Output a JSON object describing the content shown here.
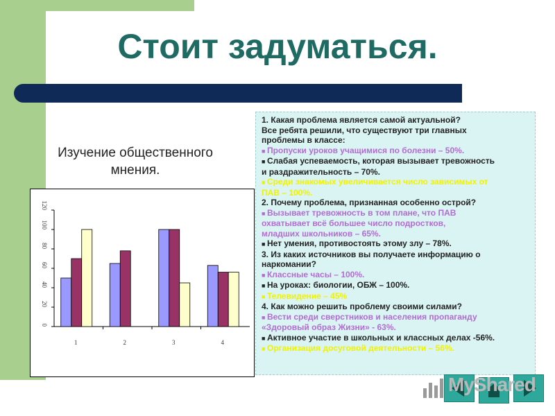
{
  "slide": {
    "title": "Стоит задуматься.",
    "subtitle_line1": "Изучение общественного",
    "subtitle_line2": "мнения."
  },
  "panel": {
    "lines": [
      {
        "text": "1. Какая  проблема является самой актуальной?",
        "style": "q"
      },
      {
        "text": "Все ребята решили, что существуют три главных",
        "style": "q"
      },
      {
        "text": "проблемы в классе:",
        "style": "q"
      },
      {
        "text": "Пропуски уроков учащимися по болезни – 50%.",
        "style": "c-pink",
        "bullet": true
      },
      {
        "text": "Слабая успеваемость, которая вызывает тревожность",
        "style": "c-dark",
        "bullet": true
      },
      {
        "text": "и раздражительность – 70%.",
        "style": "c-dark"
      },
      {
        "text": "Среди знакомых увеличивается число зависимых от",
        "style": "c-yellow",
        "bullet": true
      },
      {
        "text": "ПАВ – 100%.",
        "style": "c-yellow"
      },
      {
        "text": "2. Почему проблема, признанная особенно острой?",
        "style": "q"
      },
      {
        "text": "Вызывает тревожность в том плане, что ПАВ",
        "style": "c-pink",
        "bullet": true
      },
      {
        "text": "охватывает всё большее число подростков,",
        "style": "c-pink"
      },
      {
        "text": "младших школьников – 65%.",
        "style": "c-pink"
      },
      {
        "text": "Нет умения, противостоять этому злу – 78%.",
        "style": "c-dark",
        "bullet": true
      },
      {
        "text": "3. Из каких источников вы получаете информацию о",
        "style": "q"
      },
      {
        "text": "наркомании?",
        "style": "q"
      },
      {
        "text": "Классные часы – 100%.",
        "style": "c-pink",
        "bullet": true
      },
      {
        "text": "На уроках: биологии, ОБЖ – 100%.",
        "style": "c-dark",
        "bullet": true
      },
      {
        "text": "Телевидение – 45%",
        "style": "c-yellow",
        "bullet": true
      },
      {
        "text": "4. Как можно решить проблему своими силами?",
        "style": "q"
      },
      {
        "text": "Вести среди сверстников и населения пропаганду",
        "style": "c-pink",
        "bullet": true
      },
      {
        "text": "«Здоровый образ Жизни» - 63%.",
        "style": "c-pink"
      },
      {
        "text": "Активное участие в школьных и классных делах -56%.",
        "style": "c-dark",
        "bullet": true
      },
      {
        "text": "Организация досуговой деятельности – 56%.",
        "style": "c-yellow",
        "bullet": true
      }
    ]
  },
  "logo": {
    "text": "MyShared"
  },
  "chart_data": {
    "type": "bar",
    "categories": [
      "1",
      "2",
      "3",
      "4"
    ],
    "series": [
      {
        "values": [
          50,
          65,
          100,
          63
        ],
        "color": "#9999ff"
      },
      {
        "values": [
          70,
          78,
          100,
          56
        ],
        "color": "#993366"
      },
      {
        "values": [
          100,
          null,
          45,
          56
        ],
        "color": "#ffffcc"
      }
    ],
    "y_ticks": [
      "0",
      "20",
      "40",
      "60",
      "80",
      "100",
      "120"
    ],
    "ylim": [
      0,
      120
    ],
    "xlabel": "",
    "ylabel": "",
    "grid": false,
    "legend": "none"
  },
  "colors": {
    "accent_green": "#a9cf8e",
    "title_teal": "#1f6b63",
    "rule_navy": "#102a58",
    "panel_bg": "#d9f4f2",
    "nav_teal": "#2ea89a"
  },
  "icons": {
    "prev": "arrow-left-icon",
    "home": "home-icon",
    "next": "arrow-right-icon",
    "logo": "chart-logo-icon"
  }
}
